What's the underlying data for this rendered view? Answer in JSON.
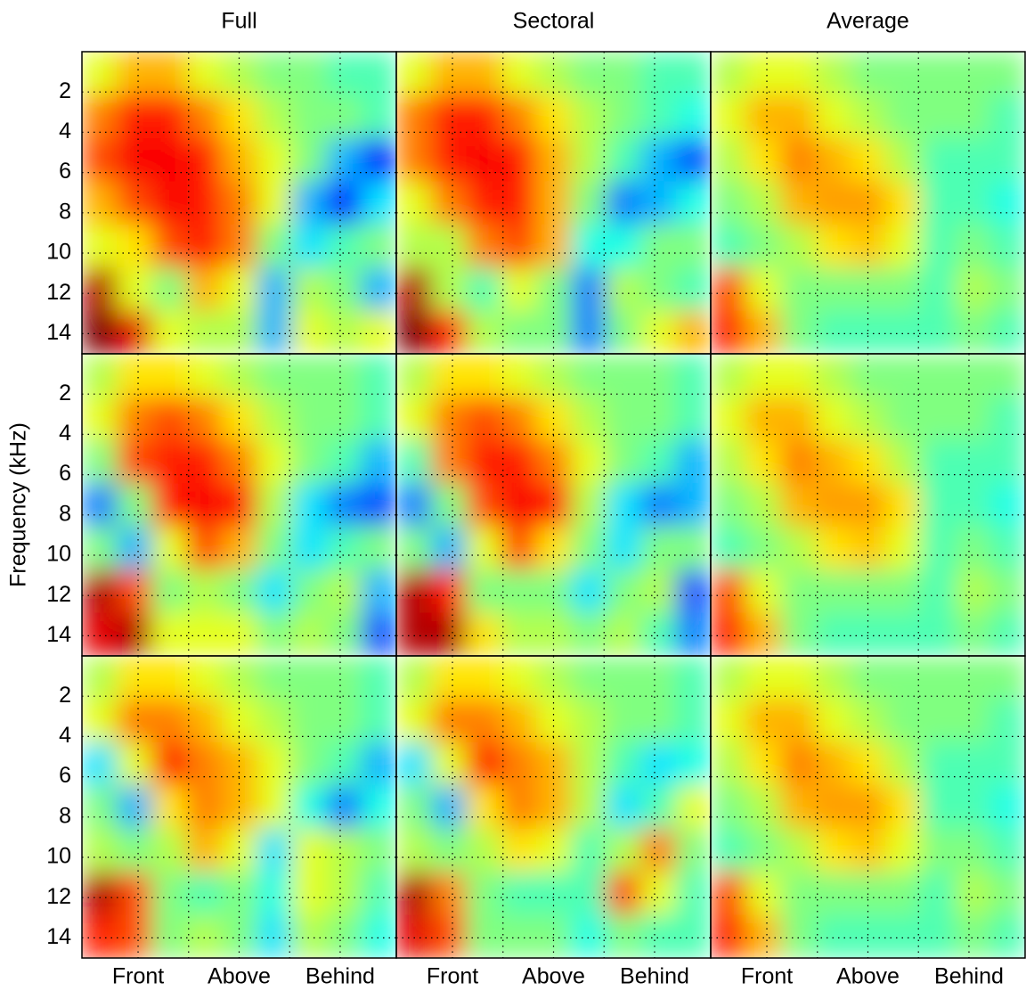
{
  "chart_data": [
    {
      "type": "heatmap",
      "title": "Full",
      "colormap": "jet",
      "zlim": [
        0,
        1
      ],
      "xlim": [
        -50,
        230
      ],
      "ylim": [
        0,
        15
      ],
      "y_reversed": true,
      "grid": true,
      "show_xticklabels": false,
      "show_yticklabels": true,
      "xticks": [
        {
          "value": 0,
          "label": "Front"
        },
        {
          "value": 45,
          "label": null
        },
        {
          "value": 90,
          "label": "Above"
        },
        {
          "value": 135,
          "label": null
        },
        {
          "value": 180,
          "label": "Behind"
        }
      ],
      "yticks": [
        2,
        4,
        6,
        8,
        10,
        12,
        14
      ],
      "z": [
        [
          0.6,
          0.7,
          0.7,
          0.6,
          0.55,
          0.5,
          0.5,
          0.45,
          0.45
        ],
        [
          0.75,
          0.85,
          0.85,
          0.75,
          0.65,
          0.55,
          0.5,
          0.5,
          0.45
        ],
        [
          0.8,
          0.88,
          0.88,
          0.85,
          0.7,
          0.6,
          0.5,
          0.3,
          0.15
        ],
        [
          0.7,
          0.8,
          0.88,
          0.85,
          0.75,
          0.6,
          0.3,
          0.15,
          0.35
        ],
        [
          0.6,
          0.65,
          0.8,
          0.85,
          0.75,
          0.5,
          0.35,
          0.45,
          0.5
        ],
        [
          0.95,
          0.6,
          0.5,
          0.7,
          0.6,
          0.3,
          0.55,
          0.5,
          0.3
        ],
        [
          1,
          0.9,
          0.6,
          0.55,
          0.55,
          0.3,
          0.6,
          0.55,
          0.6
        ]
      ]
    },
    {
      "type": "heatmap",
      "title": "Sectoral",
      "colormap": "jet",
      "zlim": [
        0,
        1
      ],
      "xlim": [
        -50,
        230
      ],
      "ylim": [
        0,
        15
      ],
      "y_reversed": true,
      "grid": true,
      "show_xticklabels": false,
      "show_yticklabels": false,
      "xticks": [
        {
          "value": 0,
          "label": "Front"
        },
        {
          "value": 45,
          "label": null
        },
        {
          "value": 90,
          "label": "Above"
        },
        {
          "value": 135,
          "label": null
        },
        {
          "value": 180,
          "label": "Behind"
        }
      ],
      "yticks": [
        2,
        4,
        6,
        8,
        10,
        12,
        14
      ],
      "z": [
        [
          0.6,
          0.7,
          0.7,
          0.6,
          0.55,
          0.5,
          0.5,
          0.45,
          0.45
        ],
        [
          0.75,
          0.85,
          0.85,
          0.75,
          0.65,
          0.55,
          0.5,
          0.45,
          0.4
        ],
        [
          0.75,
          0.85,
          0.88,
          0.85,
          0.7,
          0.55,
          0.45,
          0.3,
          0.2
        ],
        [
          0.6,
          0.75,
          0.85,
          0.85,
          0.7,
          0.5,
          0.25,
          0.3,
          0.4
        ],
        [
          0.55,
          0.55,
          0.75,
          0.8,
          0.7,
          0.4,
          0.4,
          0.5,
          0.5
        ],
        [
          0.95,
          0.55,
          0.45,
          0.6,
          0.5,
          0.25,
          0.55,
          0.5,
          0.45
        ],
        [
          1,
          0.85,
          0.55,
          0.5,
          0.5,
          0.25,
          0.5,
          0.6,
          0.7
        ]
      ]
    },
    {
      "type": "heatmap",
      "title": "Average",
      "colormap": "jet",
      "zlim": [
        0,
        1
      ],
      "xlim": [
        -50,
        230
      ],
      "ylim": [
        0,
        15
      ],
      "y_reversed": true,
      "grid": true,
      "show_xticklabels": false,
      "show_yticklabels": false,
      "xticks": [
        {
          "value": 0,
          "label": "Front"
        },
        {
          "value": 45,
          "label": null
        },
        {
          "value": 90,
          "label": "Above"
        },
        {
          "value": 135,
          "label": null
        },
        {
          "value": 180,
          "label": "Behind"
        }
      ],
      "yticks": [
        2,
        4,
        6,
        8,
        10,
        12,
        14
      ],
      "z": [
        [
          0.55,
          0.6,
          0.6,
          0.55,
          0.5,
          0.5,
          0.5,
          0.5,
          0.5
        ],
        [
          0.6,
          0.7,
          0.7,
          0.6,
          0.55,
          0.5,
          0.5,
          0.5,
          0.45
        ],
        [
          0.55,
          0.65,
          0.75,
          0.7,
          0.65,
          0.55,
          0.45,
          0.45,
          0.45
        ],
        [
          0.5,
          0.55,
          0.7,
          0.72,
          0.72,
          0.65,
          0.45,
          0.45,
          0.4
        ],
        [
          0.45,
          0.5,
          0.55,
          0.65,
          0.68,
          0.6,
          0.45,
          0.5,
          0.45
        ],
        [
          0.8,
          0.6,
          0.5,
          0.5,
          0.5,
          0.5,
          0.45,
          0.55,
          0.5
        ],
        [
          0.85,
          0.7,
          0.5,
          0.45,
          0.45,
          0.45,
          0.45,
          0.5,
          0.45
        ]
      ]
    },
    {
      "type": "heatmap",
      "ylabel": "Frequency (kHz)",
      "colormap": "jet",
      "zlim": [
        0,
        1
      ],
      "xlim": [
        -50,
        230
      ],
      "ylim": [
        0,
        15
      ],
      "y_reversed": true,
      "grid": true,
      "show_xticklabels": false,
      "show_yticklabels": true,
      "xticks": [
        {
          "value": 0,
          "label": "Front"
        },
        {
          "value": 45,
          "label": null
        },
        {
          "value": 90,
          "label": "Above"
        },
        {
          "value": 135,
          "label": null
        },
        {
          "value": 180,
          "label": "Behind"
        }
      ],
      "yticks": [
        2,
        4,
        6,
        8,
        10,
        12,
        14
      ],
      "z": [
        [
          0.55,
          0.65,
          0.65,
          0.6,
          0.55,
          0.5,
          0.5,
          0.5,
          0.45
        ],
        [
          0.6,
          0.75,
          0.8,
          0.75,
          0.65,
          0.55,
          0.5,
          0.5,
          0.45
        ],
        [
          0.5,
          0.8,
          0.85,
          0.85,
          0.75,
          0.6,
          0.5,
          0.45,
          0.3
        ],
        [
          0.25,
          0.5,
          0.85,
          0.88,
          0.85,
          0.55,
          0.35,
          0.25,
          0.2
        ],
        [
          0.5,
          0.3,
          0.6,
          0.8,
          0.7,
          0.5,
          0.35,
          0.45,
          0.5
        ],
        [
          0.95,
          0.8,
          0.5,
          0.55,
          0.5,
          0.35,
          0.5,
          0.55,
          0.3
        ],
        [
          0.9,
          0.95,
          0.6,
          0.6,
          0.6,
          0.5,
          0.55,
          0.5,
          0.2
        ]
      ]
    },
    {
      "type": "heatmap",
      "colormap": "jet",
      "zlim": [
        0,
        1
      ],
      "xlim": [
        -50,
        230
      ],
      "ylim": [
        0,
        15
      ],
      "y_reversed": true,
      "grid": true,
      "show_xticklabels": false,
      "show_yticklabels": false,
      "xticks": [
        {
          "value": 0,
          "label": "Front"
        },
        {
          "value": 45,
          "label": null
        },
        {
          "value": 90,
          "label": "Above"
        },
        {
          "value": 135,
          "label": null
        },
        {
          "value": 180,
          "label": "Behind"
        }
      ],
      "yticks": [
        2,
        4,
        6,
        8,
        10,
        12,
        14
      ],
      "z": [
        [
          0.55,
          0.65,
          0.65,
          0.6,
          0.55,
          0.5,
          0.5,
          0.5,
          0.45
        ],
        [
          0.6,
          0.75,
          0.8,
          0.75,
          0.65,
          0.55,
          0.5,
          0.5,
          0.45
        ],
        [
          0.45,
          0.75,
          0.85,
          0.85,
          0.75,
          0.6,
          0.5,
          0.45,
          0.3
        ],
        [
          0.25,
          0.5,
          0.8,
          0.88,
          0.85,
          0.55,
          0.35,
          0.25,
          0.3
        ],
        [
          0.5,
          0.3,
          0.6,
          0.8,
          0.65,
          0.5,
          0.35,
          0.5,
          0.5
        ],
        [
          0.95,
          0.85,
          0.5,
          0.5,
          0.5,
          0.35,
          0.5,
          0.55,
          0.2
        ],
        [
          0.95,
          0.95,
          0.65,
          0.55,
          0.55,
          0.5,
          0.55,
          0.45,
          0.25
        ]
      ]
    },
    {
      "type": "heatmap",
      "colormap": "jet",
      "zlim": [
        0,
        1
      ],
      "xlim": [
        -50,
        230
      ],
      "ylim": [
        0,
        15
      ],
      "y_reversed": true,
      "grid": true,
      "show_xticklabels": false,
      "show_yticklabels": false,
      "xticks": [
        {
          "value": 0,
          "label": "Front"
        },
        {
          "value": 45,
          "label": null
        },
        {
          "value": 90,
          "label": "Above"
        },
        {
          "value": 135,
          "label": null
        },
        {
          "value": 180,
          "label": "Behind"
        }
      ],
      "yticks": [
        2,
        4,
        6,
        8,
        10,
        12,
        14
      ],
      "z": [
        [
          0.55,
          0.6,
          0.6,
          0.55,
          0.5,
          0.5,
          0.5,
          0.5,
          0.5
        ],
        [
          0.6,
          0.7,
          0.7,
          0.6,
          0.55,
          0.5,
          0.5,
          0.5,
          0.45
        ],
        [
          0.55,
          0.65,
          0.75,
          0.7,
          0.65,
          0.55,
          0.45,
          0.45,
          0.45
        ],
        [
          0.5,
          0.55,
          0.7,
          0.72,
          0.72,
          0.65,
          0.45,
          0.45,
          0.4
        ],
        [
          0.45,
          0.5,
          0.55,
          0.65,
          0.68,
          0.6,
          0.45,
          0.5,
          0.45
        ],
        [
          0.8,
          0.6,
          0.5,
          0.5,
          0.5,
          0.5,
          0.45,
          0.55,
          0.5
        ],
        [
          0.85,
          0.7,
          0.5,
          0.45,
          0.45,
          0.45,
          0.45,
          0.5,
          0.45
        ]
      ]
    },
    {
      "type": "heatmap",
      "colormap": "jet",
      "zlim": [
        0,
        1
      ],
      "xlim": [
        -50,
        230
      ],
      "ylim": [
        0,
        15
      ],
      "y_reversed": true,
      "grid": true,
      "show_xticklabels": true,
      "show_yticklabels": true,
      "xticks": [
        {
          "value": 0,
          "label": "Front"
        },
        {
          "value": 45,
          "label": null
        },
        {
          "value": 90,
          "label": "Above"
        },
        {
          "value": 135,
          "label": null
        },
        {
          "value": 180,
          "label": "Behind"
        }
      ],
      "yticks": [
        2,
        4,
        6,
        8,
        10,
        12,
        14
      ],
      "z": [
        [
          0.55,
          0.65,
          0.65,
          0.6,
          0.55,
          0.5,
          0.5,
          0.5,
          0.45
        ],
        [
          0.6,
          0.75,
          0.75,
          0.7,
          0.6,
          0.55,
          0.5,
          0.5,
          0.45
        ],
        [
          0.35,
          0.6,
          0.85,
          0.75,
          0.7,
          0.6,
          0.5,
          0.45,
          0.3
        ],
        [
          0.5,
          0.3,
          0.65,
          0.75,
          0.7,
          0.6,
          0.4,
          0.25,
          0.4
        ],
        [
          0.55,
          0.5,
          0.55,
          0.7,
          0.6,
          0.35,
          0.6,
          0.55,
          0.5
        ],
        [
          0.95,
          0.8,
          0.5,
          0.45,
          0.5,
          0.4,
          0.6,
          0.55,
          0.45
        ],
        [
          0.85,
          0.8,
          0.5,
          0.55,
          0.5,
          0.35,
          0.55,
          0.5,
          0.4
        ]
      ]
    },
    {
      "type": "heatmap",
      "colormap": "jet",
      "zlim": [
        0,
        1
      ],
      "xlim": [
        -50,
        230
      ],
      "ylim": [
        0,
        15
      ],
      "y_reversed": true,
      "grid": true,
      "show_xticklabels": true,
      "show_yticklabels": false,
      "xticks": [
        {
          "value": 0,
          "label": "Front"
        },
        {
          "value": 45,
          "label": null
        },
        {
          "value": 90,
          "label": "Above"
        },
        {
          "value": 135,
          "label": null
        },
        {
          "value": 180,
          "label": "Behind"
        }
      ],
      "yticks": [
        2,
        4,
        6,
        8,
        10,
        12,
        14
      ],
      "z": [
        [
          0.55,
          0.65,
          0.65,
          0.6,
          0.55,
          0.5,
          0.5,
          0.5,
          0.45
        ],
        [
          0.6,
          0.75,
          0.75,
          0.7,
          0.6,
          0.55,
          0.5,
          0.5,
          0.45
        ],
        [
          0.35,
          0.6,
          0.85,
          0.75,
          0.7,
          0.55,
          0.45,
          0.35,
          0.4
        ],
        [
          0.5,
          0.3,
          0.65,
          0.75,
          0.7,
          0.55,
          0.35,
          0.45,
          0.6
        ],
        [
          0.55,
          0.5,
          0.55,
          0.65,
          0.6,
          0.45,
          0.55,
          0.75,
          0.5
        ],
        [
          0.95,
          0.75,
          0.5,
          0.45,
          0.45,
          0.45,
          0.8,
          0.6,
          0.45
        ],
        [
          0.9,
          0.8,
          0.5,
          0.5,
          0.5,
          0.4,
          0.5,
          0.45,
          0.45
        ]
      ]
    },
    {
      "type": "heatmap",
      "colormap": "jet",
      "zlim": [
        0,
        1
      ],
      "xlim": [
        -50,
        230
      ],
      "ylim": [
        0,
        15
      ],
      "y_reversed": true,
      "grid": true,
      "show_xticklabels": true,
      "show_yticklabels": false,
      "xticks": [
        {
          "value": 0,
          "label": "Front"
        },
        {
          "value": 45,
          "label": null
        },
        {
          "value": 90,
          "label": "Above"
        },
        {
          "value": 135,
          "label": null
        },
        {
          "value": 180,
          "label": "Behind"
        }
      ],
      "yticks": [
        2,
        4,
        6,
        8,
        10,
        12,
        14
      ],
      "z": [
        [
          0.55,
          0.6,
          0.6,
          0.55,
          0.5,
          0.5,
          0.5,
          0.5,
          0.5
        ],
        [
          0.6,
          0.7,
          0.7,
          0.6,
          0.55,
          0.5,
          0.5,
          0.5,
          0.45
        ],
        [
          0.55,
          0.65,
          0.75,
          0.7,
          0.65,
          0.55,
          0.45,
          0.45,
          0.45
        ],
        [
          0.5,
          0.55,
          0.7,
          0.72,
          0.72,
          0.65,
          0.45,
          0.45,
          0.4
        ],
        [
          0.45,
          0.5,
          0.55,
          0.65,
          0.68,
          0.6,
          0.5,
          0.5,
          0.45
        ],
        [
          0.8,
          0.6,
          0.5,
          0.5,
          0.5,
          0.5,
          0.45,
          0.55,
          0.5
        ],
        [
          0.85,
          0.7,
          0.5,
          0.45,
          0.45,
          0.45,
          0.45,
          0.5,
          0.45
        ]
      ]
    }
  ]
}
